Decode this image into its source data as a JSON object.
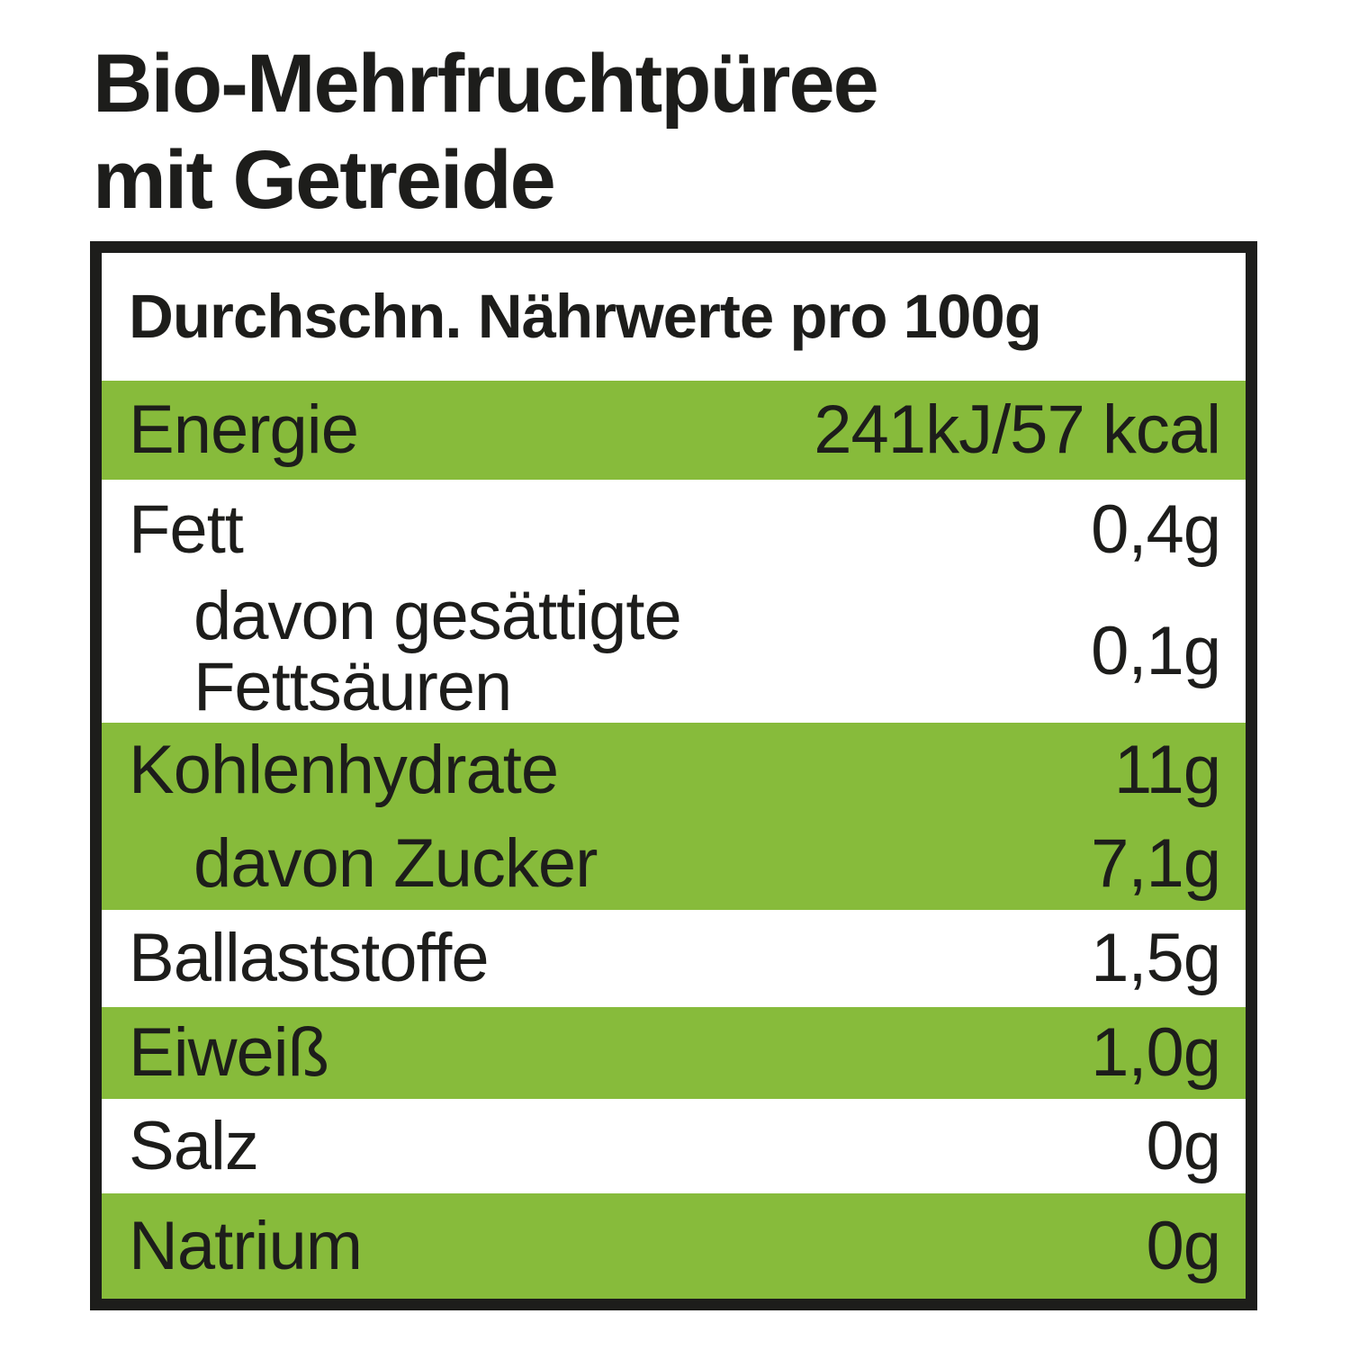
{
  "product": {
    "title_line1": "Bio-Mehrfruchtpüree",
    "title_line2": "mit Getreide"
  },
  "table": {
    "header": "Durchschn. Nährwerte pro 100g",
    "rows": [
      {
        "label": "Energie",
        "value": "241kJ/57 kcal",
        "highlighted": true,
        "indented": false
      },
      {
        "label": "Fett",
        "value": "0,4g",
        "highlighted": false,
        "indented": false
      },
      {
        "label": "davon gesättigte Fettsäuren",
        "value": "0,1g",
        "highlighted": false,
        "indented": true
      },
      {
        "label": "Kohlenhydrate",
        "value": "11g",
        "highlighted": true,
        "indented": false
      },
      {
        "label": "davon Zucker",
        "value": "7,1g",
        "highlighted": true,
        "indented": true
      },
      {
        "label": "Ballaststoffe",
        "value": "1,5g",
        "highlighted": false,
        "indented": false
      },
      {
        "label": "Eiweiß",
        "value": "1,0g",
        "highlighted": true,
        "indented": false
      },
      {
        "label": "Salz",
        "value": "0g",
        "highlighted": false,
        "indented": false
      },
      {
        "label": "Natrium",
        "value": "0g",
        "highlighted": true,
        "indented": false
      }
    ]
  },
  "colors": {
    "highlight_green": "#87BB3B",
    "text": "#1D1D1B",
    "background": "#FFFFFF"
  }
}
